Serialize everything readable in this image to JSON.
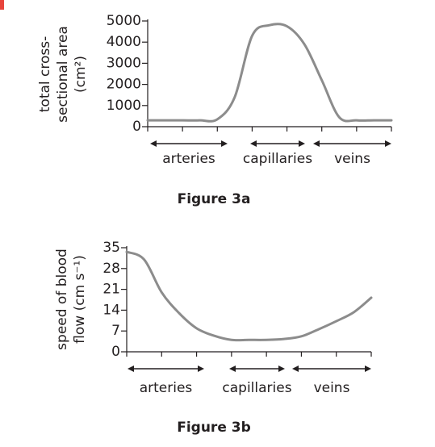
{
  "chart_data": [
    {
      "type": "line",
      "title": "Figure 3a",
      "ylabel": [
        "total cross-",
        "sectional area",
        "(cm²)"
      ],
      "categories": [
        null,
        null,
        null,
        null,
        null,
        null,
        null,
        null,
        null,
        null,
        null,
        null,
        null,
        null,
        null
      ],
      "values": [
        300,
        300,
        300,
        300,
        350,
        1400,
        4300,
        4800,
        4750,
        3900,
        2200,
        450,
        300,
        300,
        300
      ],
      "color": "#8c8c8c",
      "ylim": [
        0,
        5000
      ],
      "yticks": [
        0,
        1000,
        2000,
        3000,
        4000,
        5000
      ],
      "regions": [
        "arteries",
        "capillaries",
        "veins"
      ]
    },
    {
      "type": "line",
      "title": "Figure 3b",
      "ylabel": [
        "speed of blood",
        "flow (cm s⁻¹)"
      ],
      "categories": [
        null,
        null,
        null,
        null,
        null,
        null,
        null,
        null,
        null,
        null,
        null,
        null,
        null,
        null,
        null
      ],
      "values": [
        33.6,
        31,
        20,
        13,
        7.9,
        5.4,
        4,
        4,
        4,
        4.3,
        5.2,
        7.6,
        10.3,
        13.3,
        18.2
      ],
      "color": "#8c8c8c",
      "ylim": [
        0,
        35
      ],
      "yticks": [
        0,
        7,
        14,
        21,
        28,
        35
      ],
      "regions": [
        "arteries",
        "capillaries",
        "veins"
      ]
    }
  ]
}
